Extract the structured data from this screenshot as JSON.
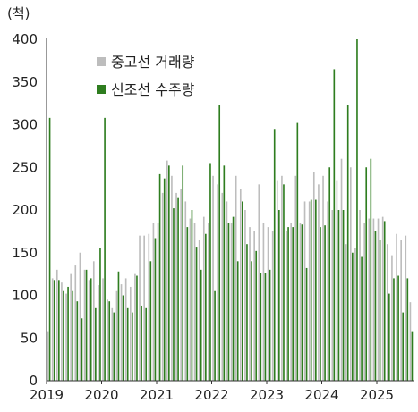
{
  "chart_data": {
    "type": "bar",
    "unit_label": "(척)",
    "ylim": [
      0,
      400
    ],
    "yticks": [
      0,
      50,
      100,
      150,
      200,
      250,
      300,
      350,
      400
    ],
    "xticks": [
      "2019",
      "2020",
      "2021",
      "2022",
      "2023",
      "2024",
      "2025"
    ],
    "grid": false,
    "legend_position": "top-left",
    "colors": {
      "used": "#bdbdbd",
      "new": "#2e7d1f"
    },
    "categories": [
      "2019-01",
      "2019-02",
      "2019-03",
      "2019-04",
      "2019-05",
      "2019-06",
      "2019-07",
      "2019-08",
      "2019-09",
      "2019-10",
      "2019-11",
      "2019-12",
      "2020-01",
      "2020-02",
      "2020-03",
      "2020-04",
      "2020-05",
      "2020-06",
      "2020-07",
      "2020-08",
      "2020-09",
      "2020-10",
      "2020-11",
      "2020-12",
      "2021-01",
      "2021-02",
      "2021-03",
      "2021-04",
      "2021-05",
      "2021-06",
      "2021-07",
      "2021-08",
      "2021-09",
      "2021-10",
      "2021-11",
      "2021-12",
      "2022-01",
      "2022-02",
      "2022-03",
      "2022-04",
      "2022-05",
      "2022-06",
      "2022-07",
      "2022-08",
      "2022-09",
      "2022-10",
      "2022-11",
      "2022-12",
      "2023-01",
      "2023-02",
      "2023-03",
      "2023-04",
      "2023-05",
      "2023-06",
      "2023-07",
      "2023-08",
      "2023-09",
      "2023-10",
      "2023-11",
      "2023-12",
      "2024-01",
      "2024-02",
      "2024-03",
      "2024-04",
      "2024-05",
      "2024-06",
      "2024-07",
      "2024-08",
      "2024-09",
      "2024-10",
      "2024-11",
      "2024-12",
      "2025-01",
      "2025-02",
      "2025-03",
      "2025-04",
      "2025-05",
      "2025-06",
      "2025-07",
      "2025-08"
    ],
    "series": [
      {
        "name": "중고선 거래량",
        "key": "used",
        "values": [
          58,
          120,
          130,
          115,
          102,
          125,
          135,
          150,
          130,
          118,
          140,
          112,
          120,
          95,
          85,
          105,
          113,
          120,
          110,
          125,
          170,
          170,
          172,
          185,
          185,
          220,
          258,
          240,
          220,
          225,
          210,
          190,
          185,
          165,
          192,
          185,
          240,
          230,
          220,
          210,
          185,
          240,
          225,
          200,
          180,
          175,
          230,
          185,
          180,
          175,
          235,
          240,
          175,
          185,
          240,
          185,
          210,
          210,
          245,
          230,
          240,
          210,
          200,
          235,
          260,
          160,
          250,
          155,
          200,
          185,
          190,
          190,
          190,
          192,
          160,
          147,
          172,
          165,
          170,
          92
        ]
      },
      {
        "name": "신조선 수주량",
        "key": "new",
        "values": [
          308,
          118,
          118,
          105,
          110,
          105,
          93,
          73,
          130,
          120,
          85,
          155,
          308,
          93,
          80,
          128,
          100,
          85,
          80,
          123,
          88,
          85,
          140,
          167,
          242,
          237,
          252,
          202,
          215,
          252,
          180,
          200,
          157,
          130,
          172,
          255,
          105,
          323,
          252,
          185,
          192,
          140,
          210,
          160,
          140,
          152,
          126,
          126,
          130,
          295,
          200,
          230,
          180,
          180,
          302,
          183,
          132,
          212,
          212,
          180,
          182,
          250,
          365,
          200,
          200,
          323,
          150,
          400,
          145,
          250,
          260,
          175,
          165,
          187,
          102,
          120,
          123,
          80,
          120,
          58
        ]
      }
    ]
  }
}
